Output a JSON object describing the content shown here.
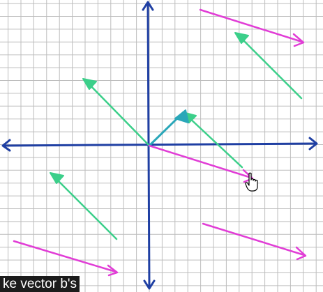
{
  "caption": {
    "text": "ke vector b's"
  },
  "colors": {
    "background": "#ffffff",
    "grid": "#bdbdbd",
    "axes": "#1f3fa3",
    "vector_a": "#3ccf8a",
    "vector_b": "#e13dd6",
    "vector_sum": "#2aa7b9",
    "caption_bg": "#1c1c1c",
    "caption_text": "#ffffff"
  },
  "cursor": {
    "icon": "hand-pointer-icon"
  }
}
